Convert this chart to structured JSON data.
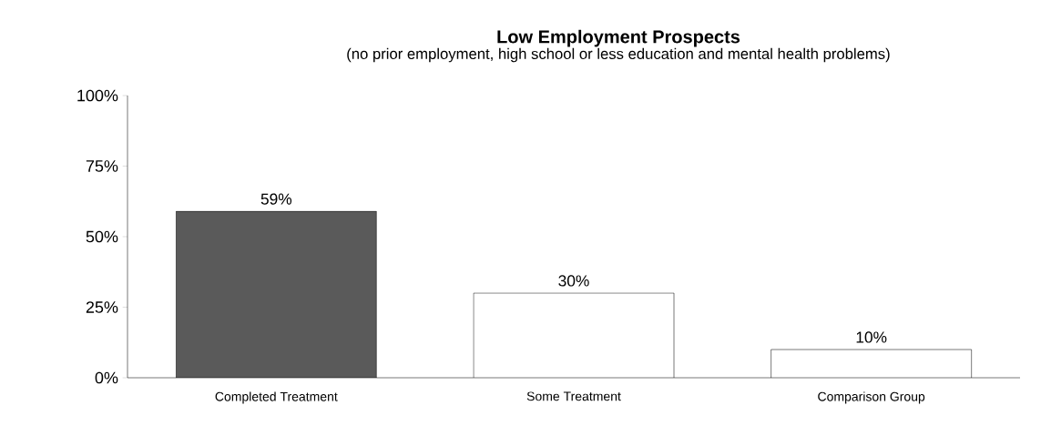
{
  "chart_data": {
    "type": "bar",
    "title": "Low Employment Prospects",
    "subtitle": "(no prior employment, high school or less education and mental health problems)",
    "categories": [
      "Completed Treatment",
      "Some Treatment",
      "Comparison Group"
    ],
    "values": [
      59,
      30,
      10
    ],
    "colors": [
      "#5a5a5a",
      "#ffffff",
      "#ffffff"
    ],
    "value_labels": [
      "59%",
      "30%",
      "10%"
    ],
    "ylim": [
      0,
      100
    ],
    "yticks": [
      {
        "value": 0,
        "label": "0%"
      },
      {
        "value": 25,
        "label": "25%"
      },
      {
        "value": 50,
        "label": "50%"
      },
      {
        "value": 75,
        "label": "75%"
      },
      {
        "value": 100,
        "label": "100%"
      }
    ],
    "grid": false
  }
}
